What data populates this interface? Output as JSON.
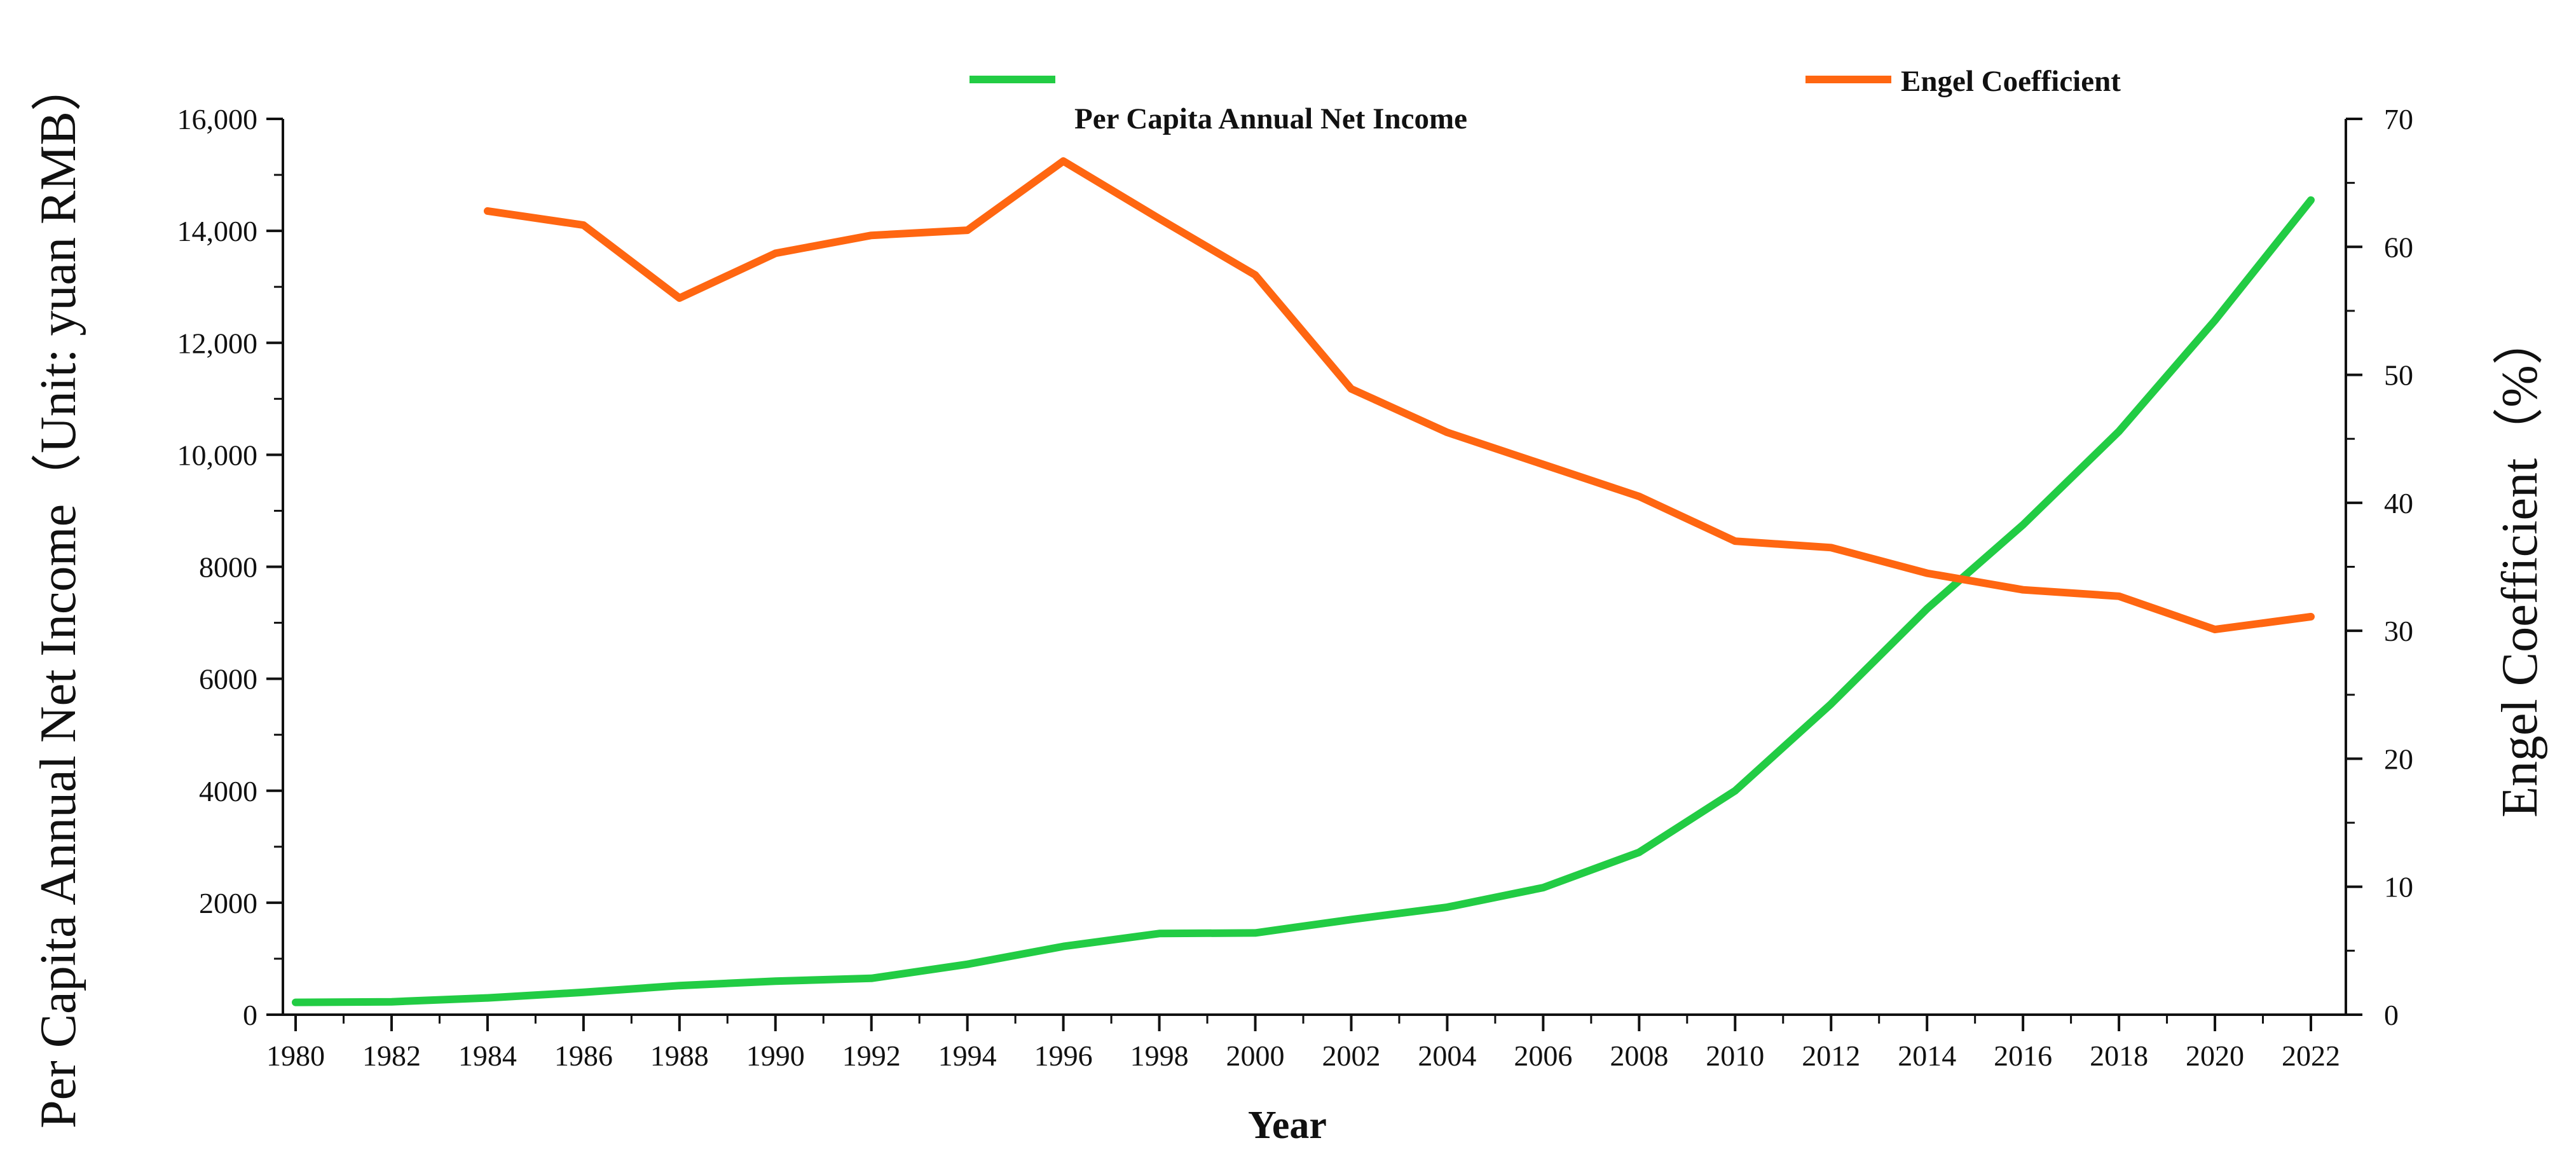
{
  "chart_data": {
    "type": "line",
    "x": [
      1980,
      1982,
      1984,
      1986,
      1988,
      1990,
      1992,
      1994,
      1996,
      1998,
      2000,
      2002,
      2004,
      2006,
      2008,
      2010,
      2012,
      2014,
      2016,
      2018,
      2020,
      2022
    ],
    "x_tick_labels": [
      "1980",
      "1982",
      "1984",
      "1986",
      "1988",
      "1990",
      "1992",
      "1994",
      "1996",
      "1998",
      "2000",
      "2002",
      "2004",
      "2006",
      "2008",
      "2010",
      "2012",
      "2014",
      "2016",
      "2018",
      "2020",
      "2022"
    ],
    "xlabel": "Year",
    "ylabel_left": "Per Capita Annual Net Income（Unit: yuan  RMB）",
    "ylabel_right": "Engel Coefficient（%）",
    "ylim_left": [
      0,
      16000
    ],
    "ylim_right": [
      0,
      70
    ],
    "y_left_tick_labels": [
      "0",
      "2000",
      "4000",
      "6000",
      "8000",
      "10,000",
      "12,000",
      "14,000",
      "16,000"
    ],
    "y_right_tick_labels": [
      "0",
      "10",
      "20",
      "30",
      "40",
      "50",
      "60",
      "70"
    ],
    "grid": false,
    "legend_position": "top",
    "series": [
      {
        "name": "Per Capita Annual Net Income",
        "axis": "left",
        "color": "#22cc44",
        "x": [
          1980,
          1982,
          1984,
          1986,
          1988,
          1990,
          1992,
          1994,
          1996,
          1998,
          2000,
          2002,
          2004,
          2006,
          2008,
          2010,
          2012,
          2014,
          2016,
          2018,
          2020,
          2022
        ],
        "values": [
          220,
          230,
          300,
          400,
          520,
          600,
          650,
          900,
          1220,
          1450,
          1460,
          1700,
          1920,
          2270,
          2900,
          4000,
          5550,
          7250,
          8750,
          10420,
          12400,
          14550
        ]
      },
      {
        "name": "Engel Coefficient",
        "axis": "right",
        "color": "#ff6611",
        "x": [
          1984,
          1986,
          1988,
          1990,
          1992,
          1994,
          1996,
          1998,
          2000,
          2002,
          2004,
          2006,
          2008,
          2010,
          2012,
          2014,
          2016,
          2018,
          2020,
          2022
        ],
        "values": [
          62.8,
          61.7,
          56.0,
          59.5,
          60.9,
          61.3,
          66.7,
          62.2,
          57.8,
          48.9,
          45.5,
          43.0,
          40.5,
          37.0,
          36.5,
          34.5,
          33.2,
          32.7,
          30.1,
          31.1
        ]
      }
    ]
  }
}
